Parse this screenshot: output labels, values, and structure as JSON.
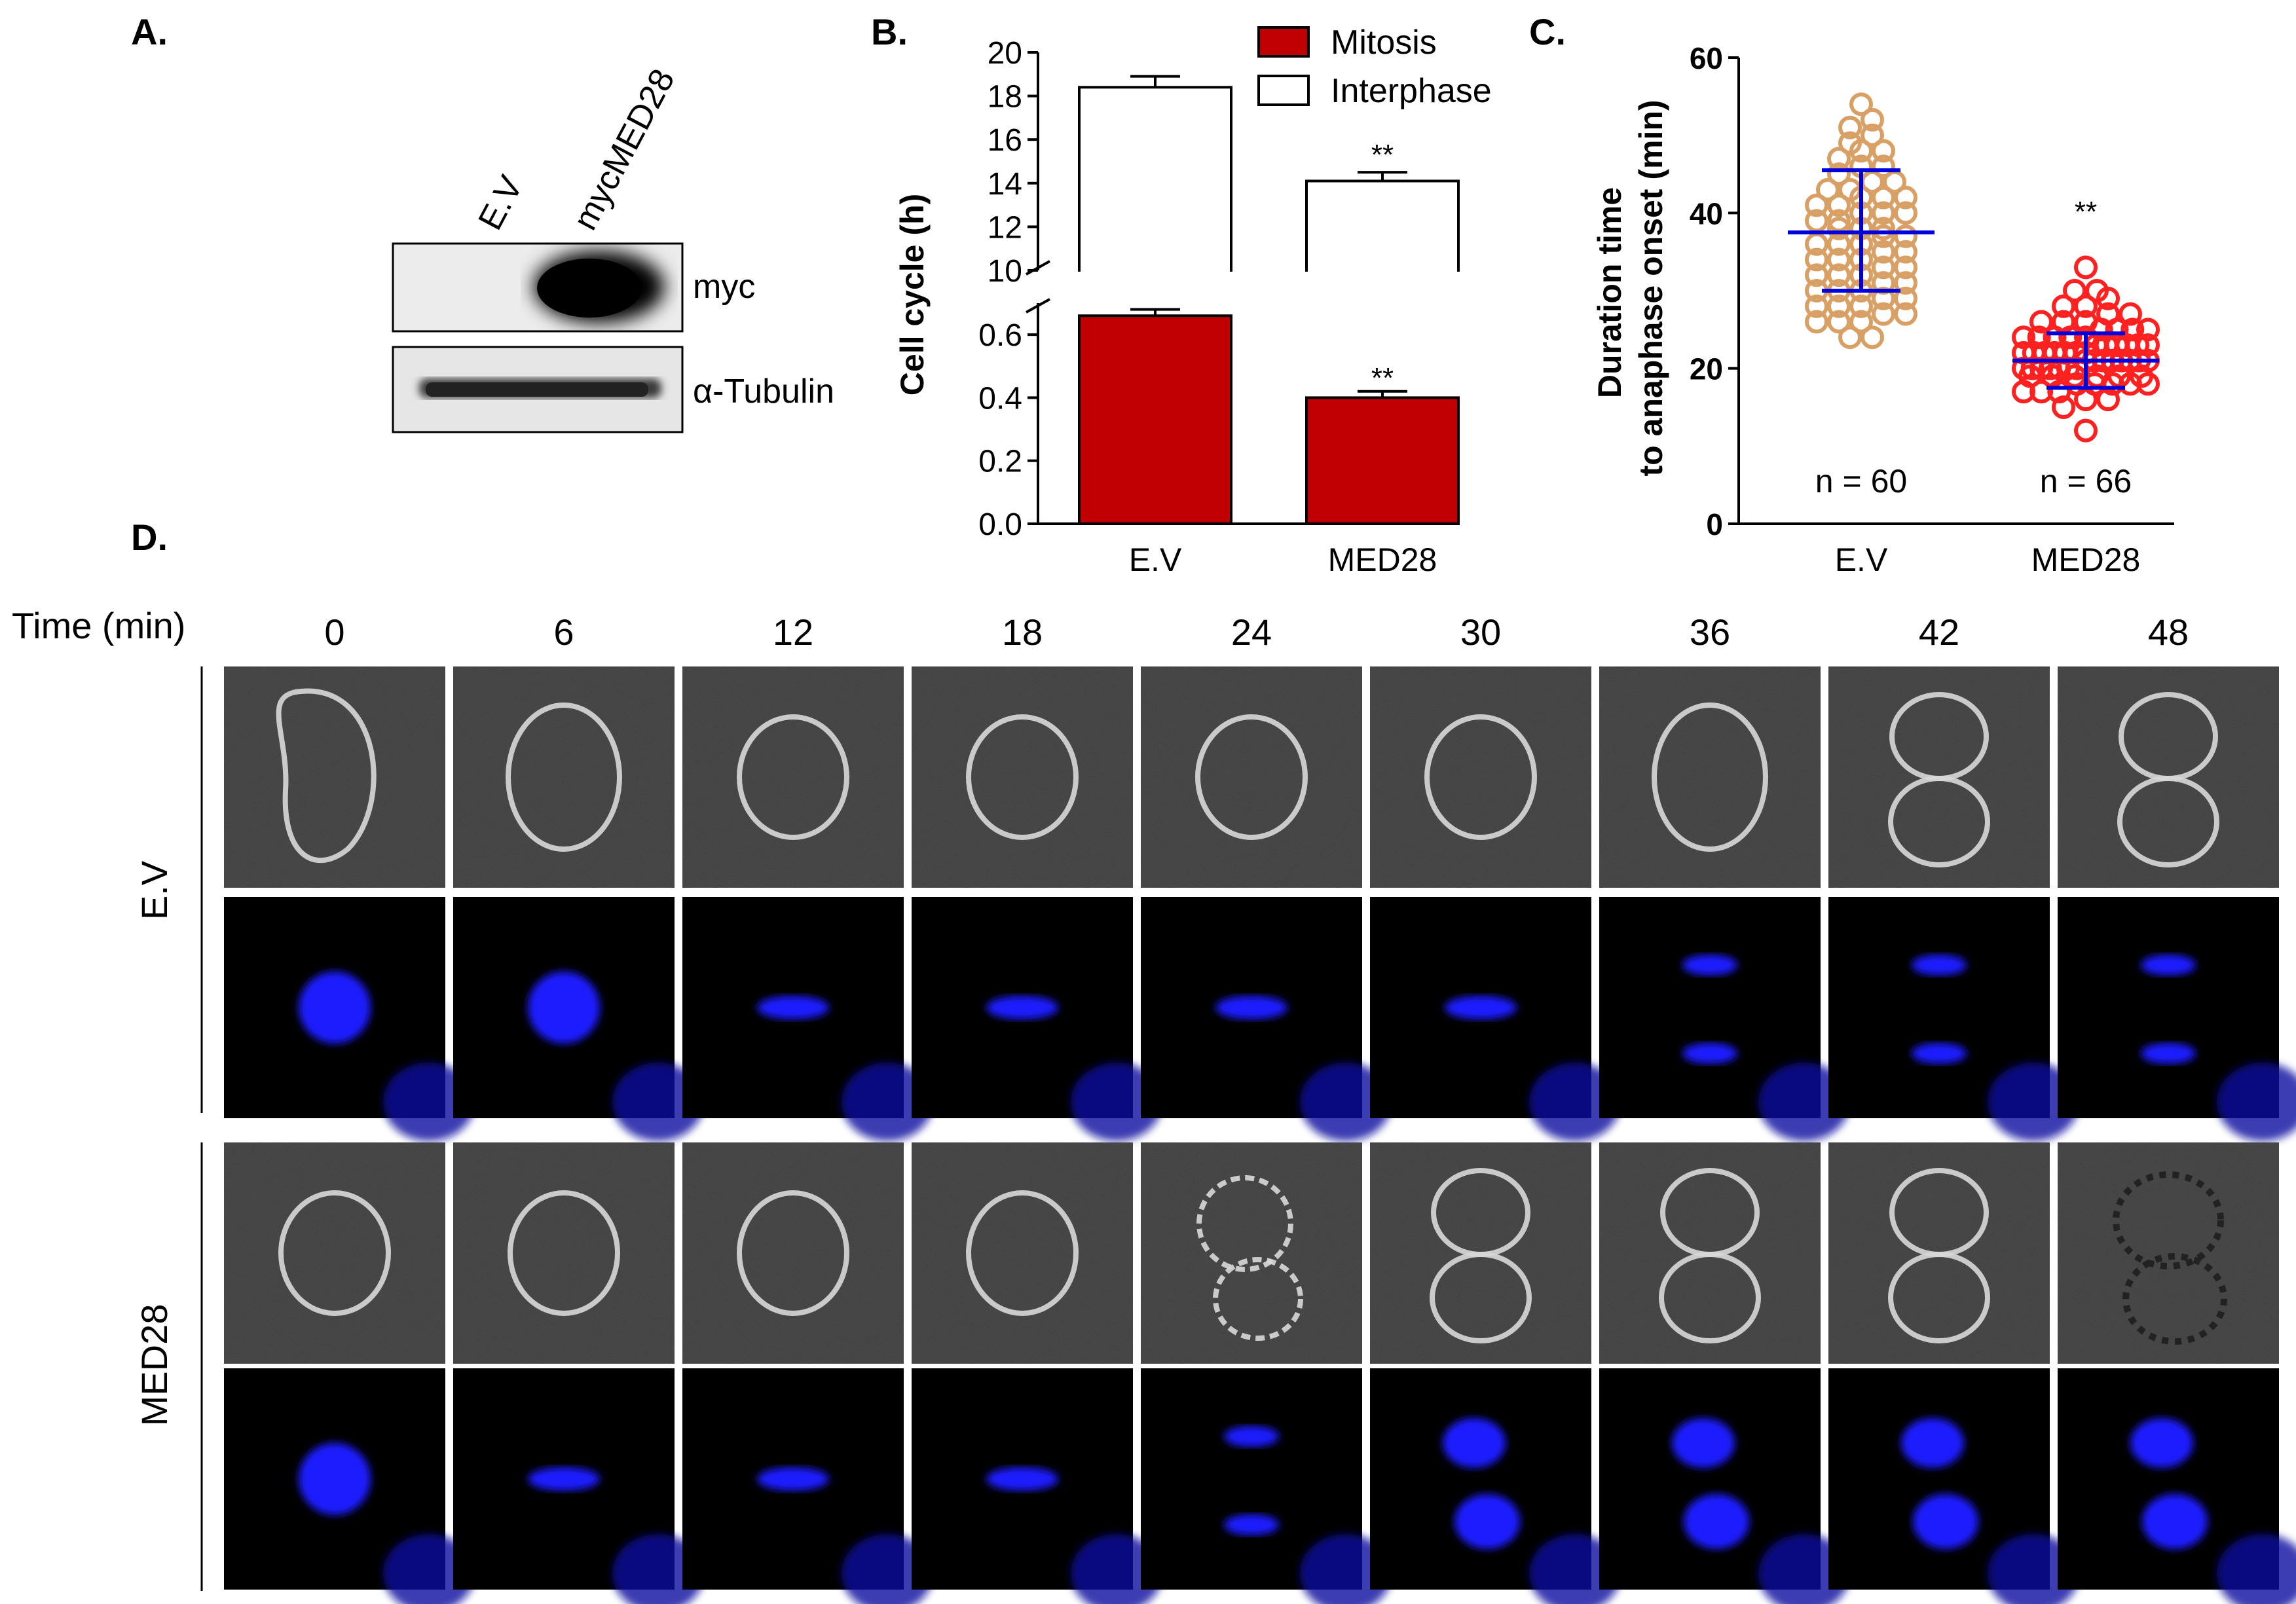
{
  "panels": {
    "a": {
      "letter": "A.",
      "lanes": [
        "E.V",
        "mycMED28"
      ],
      "blots": [
        {
          "label": "myc"
        },
        {
          "label": "α-Tubulin"
        }
      ]
    },
    "b": {
      "letter": "B."
    },
    "c": {
      "letter": "C."
    },
    "d": {
      "letter": "D.",
      "time_header": "Time (min)",
      "timepoints": [
        "0",
        "6",
        "12",
        "18",
        "24",
        "30",
        "36",
        "42",
        "48"
      ],
      "rows": [
        "E.V",
        "MED28"
      ]
    }
  },
  "chart_data": [
    {
      "type": "bar",
      "stacked": true,
      "ylabel": "Cell cycle (h)",
      "categories": [
        "E.V",
        "MED28"
      ],
      "y_broken_axis": true,
      "y_lower_range": [
        0.0,
        0.7
      ],
      "y_upper_range": [
        10,
        20
      ],
      "y_lower_ticks": [
        "0.0",
        "0.2",
        "0.4",
        "0.6"
      ],
      "y_upper_ticks": [
        "10",
        "12",
        "14",
        "16",
        "18",
        "20"
      ],
      "legend_position": "top-right",
      "series": [
        {
          "name": "Mitosis",
          "values": [
            0.66,
            0.4
          ],
          "errors": [
            0.02,
            0.02
          ],
          "color": "#c00000"
        },
        {
          "name": "Interphase",
          "totals": [
            18.4,
            14.1
          ],
          "errors": [
            0.5,
            0.4
          ],
          "color": "#ffffff"
        }
      ],
      "annotations": [
        {
          "category": "MED28",
          "series": "Interphase",
          "text": "**"
        },
        {
          "category": "MED28",
          "series": "Mitosis",
          "text": "**"
        }
      ]
    },
    {
      "type": "scatter",
      "ylabel": "Duration time\nto anaphase onset (min)",
      "categories": [
        "E.V",
        "MED28"
      ],
      "ylim": [
        0,
        60
      ],
      "y_ticks": [
        "0",
        "20",
        "40",
        "60"
      ],
      "groups": [
        {
          "category": "E.V",
          "n_label": "n = 60",
          "mean": 37.5,
          "sd_low": 30,
          "sd_high": 45.5,
          "color": "#d9a066",
          "values": [
            24,
            24,
            26,
            26,
            26,
            27,
            27,
            28,
            28,
            28,
            29,
            29,
            30,
            30,
            30,
            31,
            31,
            32,
            32,
            32,
            33,
            33,
            34,
            34,
            34,
            35,
            35,
            36,
            36,
            36,
            37,
            37,
            38,
            38,
            38,
            39,
            39,
            40,
            40,
            40,
            41,
            41,
            42,
            42,
            42,
            43,
            43,
            44,
            44,
            45,
            46,
            46,
            47,
            48,
            48,
            49,
            50,
            51,
            52,
            54
          ]
        },
        {
          "category": "MED28",
          "n_label": "n = 66",
          "mean": 21,
          "sd_low": 17.5,
          "sd_high": 24.5,
          "color": "#ff2020",
          "values": [
            12,
            15,
            16,
            16,
            17,
            17,
            17,
            18,
            18,
            18,
            18,
            18,
            19,
            19,
            19,
            19,
            19,
            19,
            20,
            20,
            20,
            20,
            20,
            20,
            20,
            21,
            21,
            21,
            21,
            21,
            21,
            21,
            21,
            22,
            22,
            22,
            22,
            22,
            22,
            22,
            23,
            23,
            23,
            23,
            23,
            23,
            24,
            24,
            24,
            24,
            24,
            25,
            25,
            25,
            25,
            26,
            26,
            26,
            27,
            27,
            28,
            28,
            29,
            30,
            30,
            33
          ]
        }
      ],
      "annotations": [
        {
          "category": "MED28",
          "text": "**"
        }
      ]
    }
  ]
}
